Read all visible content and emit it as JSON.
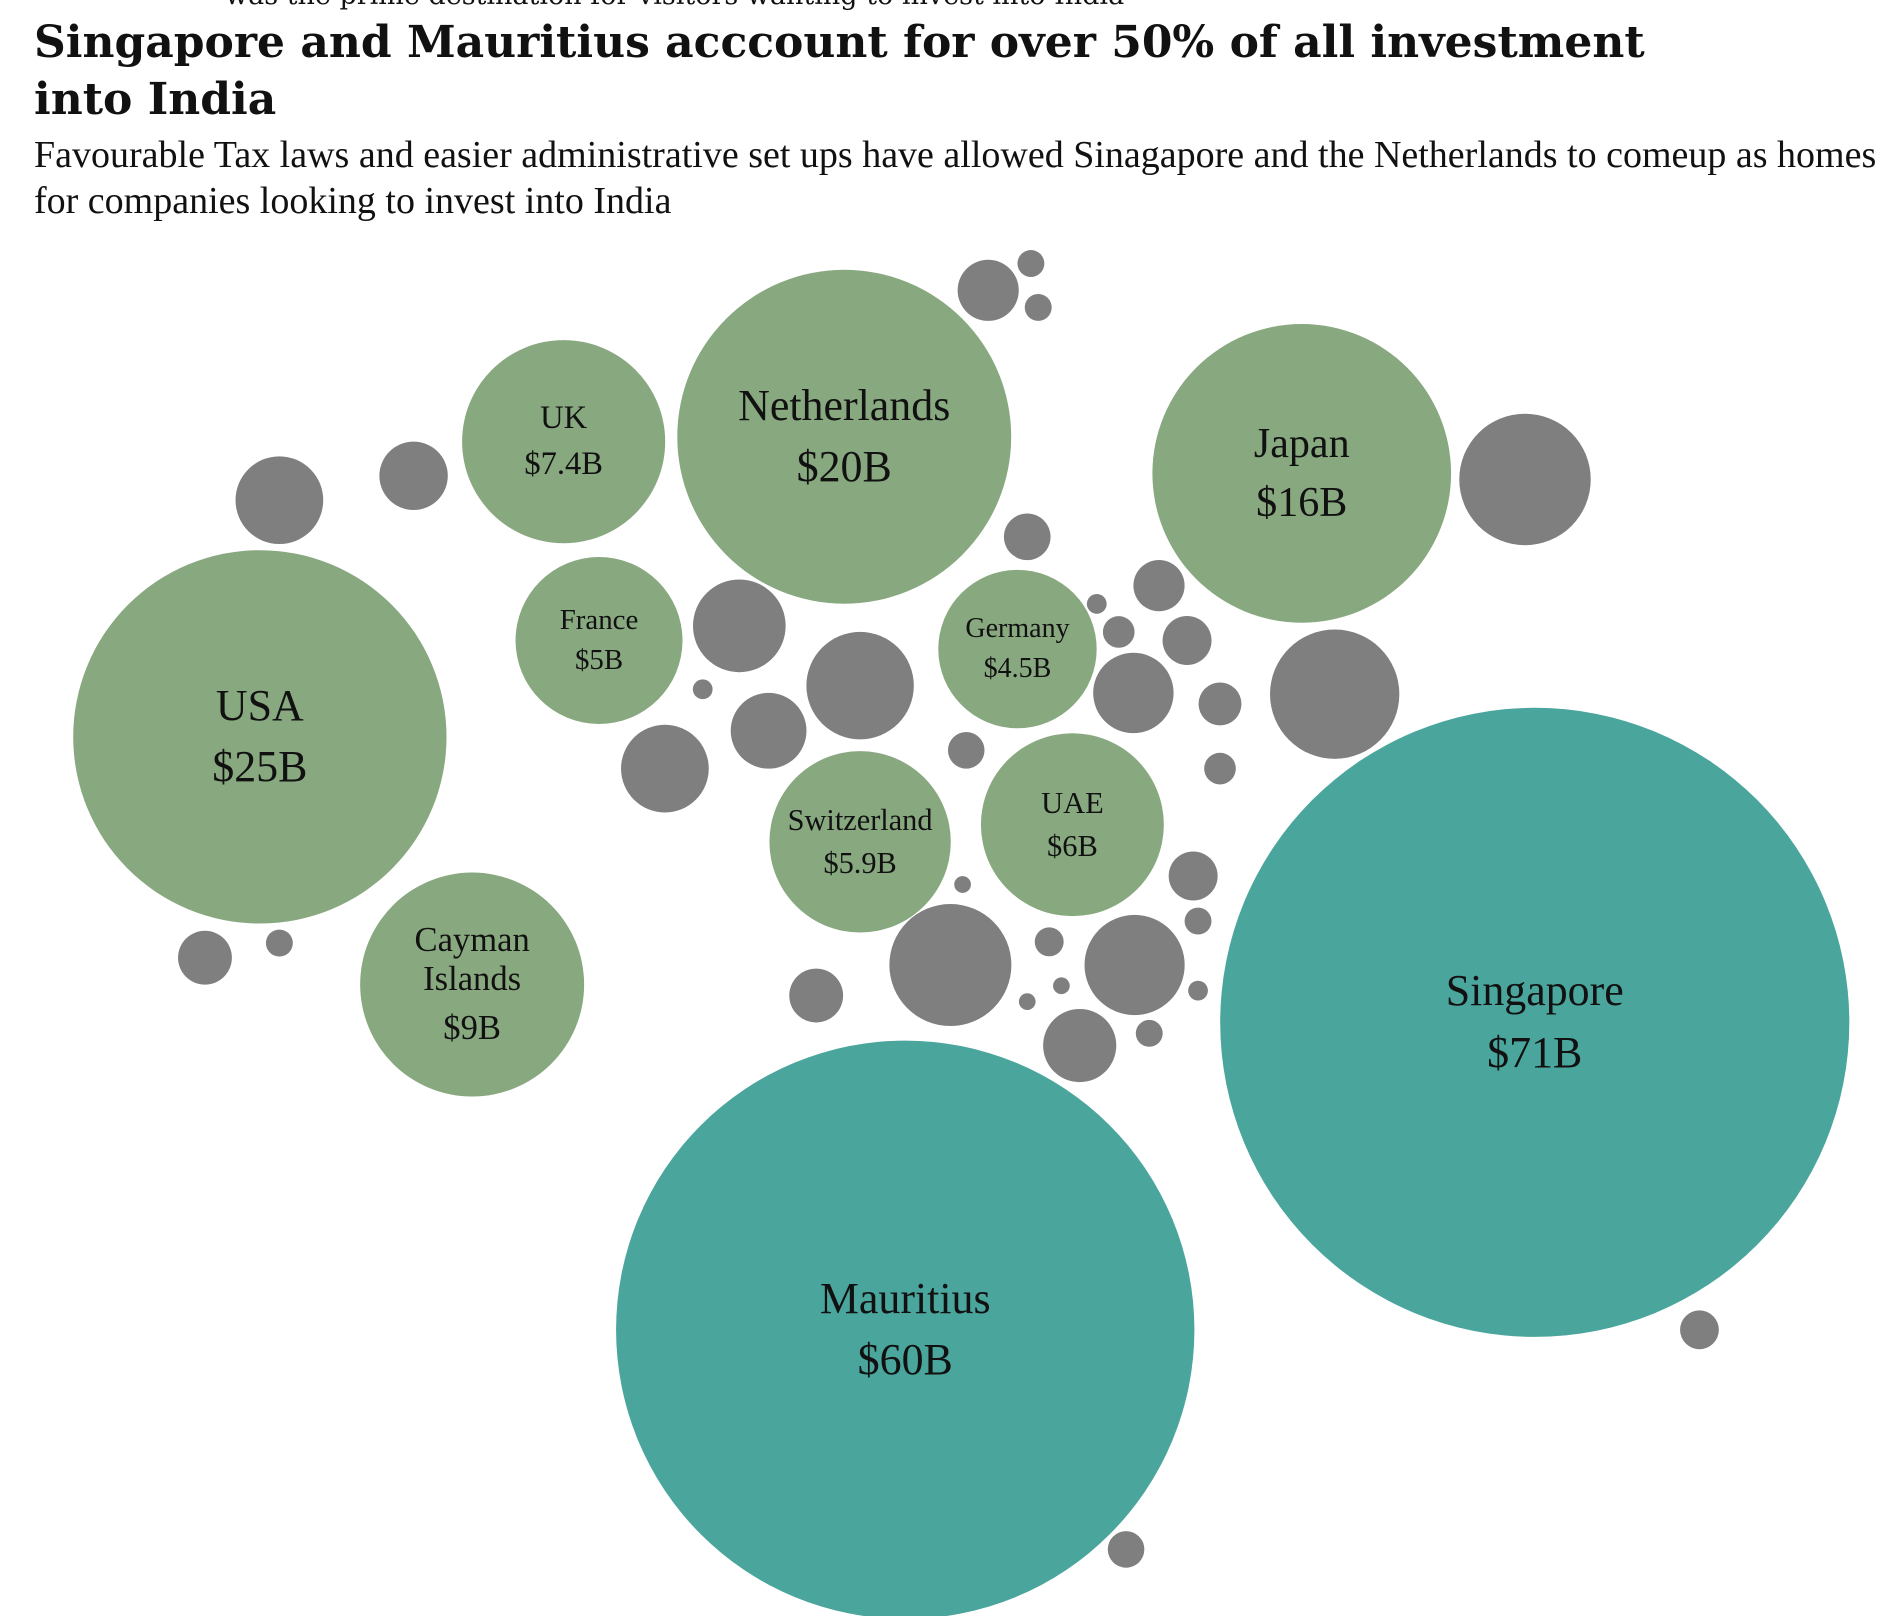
{
  "note_above": "was the prime destination for visitors wanting to invest into India",
  "chart_data": {
    "type": "packed-bubble",
    "title": "Singapore and Mauritius acccount for over 50% of all investment into India",
    "subtitle": "Favourable Tax laws and easier administrative set ups have allowed Sinagapore and the Netherlands to comeup as homes for companies looking to invest into India",
    "categories": [
      "Singapore",
      "Mauritius",
      "USA",
      "Netherlands",
      "Japan",
      "Cayman Islands",
      "UK",
      "France",
      "Germany",
      "Switzerland",
      "UAE",
      null,
      null,
      null,
      null,
      null,
      null,
      null,
      null,
      null,
      null,
      null,
      null,
      null,
      null,
      null,
      null,
      null,
      null,
      null,
      null,
      null,
      null,
      null,
      null,
      null,
      null,
      null,
      null,
      null,
      null,
      null,
      null,
      null,
      null,
      null,
      null,
      null
    ],
    "values": [
      71,
      60,
      25,
      20,
      16,
      9,
      7.4,
      5,
      4.5,
      5.9,
      6,
      1.38,
      0.84,
      0.67,
      0.13,
      0.13,
      0.39,
      3.1,
      0.47,
      0.07,
      0.18,
      0.43,
      1.54,
      2.07,
      0.07,
      1.03,
      1.38,
      1.16,
      0.33,
      3.0,
      0.24,
      0.18,
      0.43,
      0.05,
      0.13,
      2.67,
      0.15,
      1.8,
      0.05,
      0.05,
      0.07,
      0.52,
      0.96,
      0.13,
      0.52,
      0.13,
      0.27,
      0.24
    ],
    "value_labels": [
      "$71B",
      "$60B",
      "$25B",
      "$20B",
      "$16B",
      "$9B",
      "$7.4B",
      "$5B",
      "$4.5B",
      "$5.9B",
      "$6B",
      null,
      null,
      null,
      null,
      null,
      null,
      null,
      null,
      null,
      null,
      null,
      null,
      null,
      null,
      null,
      null,
      null,
      null,
      null,
      null,
      null,
      null,
      null,
      null,
      null,
      null,
      null,
      null,
      null,
      null,
      null,
      null,
      null,
      null,
      null,
      null,
      null
    ],
    "colors": [
      "#4aa59c",
      "#4aa59c",
      "#88a87f",
      "#88a87f",
      "#88a87f",
      "#88a87f",
      "#88a87f",
      "#88a87f",
      "#88a87f",
      "#88a87f",
      "#88a87f",
      "#7f7f7f",
      "#7f7f7f",
      "#7f7f7f",
      "#7f7f7f",
      "#7f7f7f",
      "#7f7f7f",
      "#7f7f7f",
      "#7f7f7f",
      "#7f7f7f",
      "#7f7f7f",
      "#7f7f7f",
      "#7f7f7f",
      "#7f7f7f",
      "#7f7f7f",
      "#7f7f7f",
      "#7f7f7f",
      "#7f7f7f",
      "#7f7f7f",
      "#7f7f7f",
      "#7f7f7f",
      "#7f7f7f",
      "#7f7f7f",
      "#7f7f7f",
      "#7f7f7f",
      "#7f7f7f",
      "#7f7f7f",
      "#7f7f7f",
      "#7f7f7f",
      "#7f7f7f",
      "#7f7f7f",
      "#7f7f7f",
      "#7f7f7f",
      "#7f7f7f",
      "#7f7f7f",
      "#7f7f7f",
      "#7f7f7f",
      "#7f7f7f"
    ]
  }
}
